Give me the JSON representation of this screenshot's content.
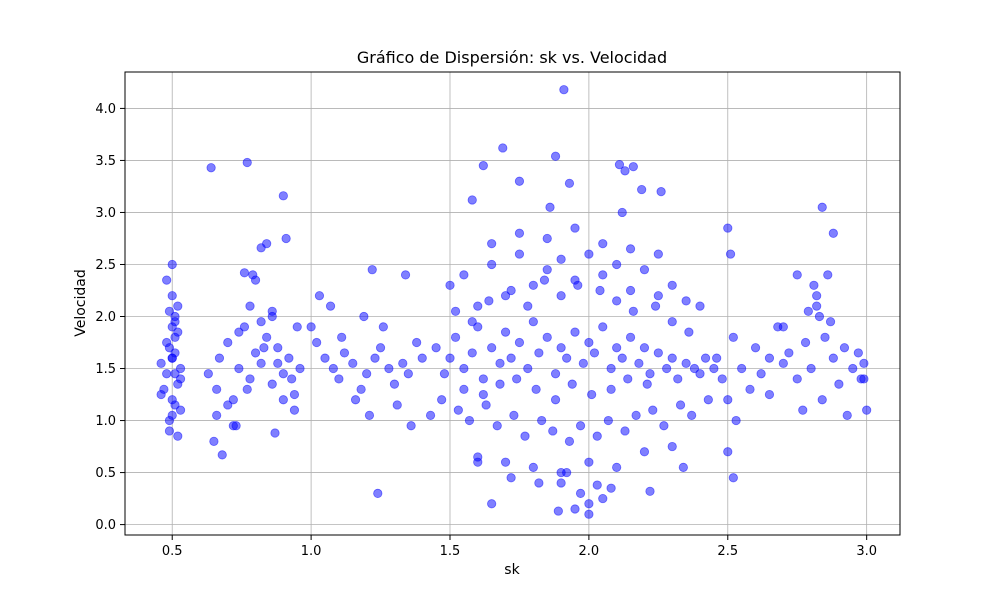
{
  "chart_data": {
    "type": "scatter",
    "title": "Gráfico de Dispersión: sk vs. Velocidad",
    "xlabel": "sk",
    "ylabel": "Velocidad",
    "xlim": [
      0.33,
      3.12
    ],
    "ylim": [
      -0.1,
      4.35
    ],
    "x_ticks": [
      0.5,
      1.0,
      1.5,
      2.0,
      2.5,
      3.0
    ],
    "x_tick_labels": [
      "0.5",
      "1.0",
      "1.5",
      "2.0",
      "2.5",
      "3.0"
    ],
    "y_ticks": [
      0.0,
      0.5,
      1.0,
      1.5,
      2.0,
      2.5,
      3.0,
      3.5,
      4.0
    ],
    "y_tick_labels": [
      "0.0",
      "0.5",
      "1.0",
      "1.5",
      "2.0",
      "2.5",
      "3.0",
      "3.5",
      "4.0"
    ],
    "grid": true,
    "legend": "none",
    "marker_color": "#0000ff",
    "marker_alpha": 0.5,
    "series": [
      {
        "x": [
          0.46,
          0.47,
          0.48,
          0.49,
          0.5,
          0.5,
          0.51,
          0.51,
          0.52,
          0.53,
          0.46,
          0.49,
          0.5,
          0.51,
          0.52,
          0.48,
          0.5,
          0.51,
          0.53,
          0.49,
          0.52,
          0.5,
          0.52,
          0.51,
          0.49,
          0.5,
          0.51,
          0.53,
          0.5,
          0.48,
          0.63,
          0.66,
          0.67,
          0.7,
          0.72,
          0.74,
          0.76,
          0.78,
          0.8,
          0.82,
          0.84,
          0.86,
          0.88,
          0.9,
          0.92,
          0.94,
          0.96,
          0.66,
          0.7,
          0.74,
          0.78,
          0.82,
          0.86,
          0.9,
          0.94,
          0.72,
          0.77,
          0.83,
          0.88,
          0.93,
          0.64,
          0.77,
          0.9,
          0.76,
          0.79,
          0.82,
          0.84,
          0.86,
          0.91,
          0.65,
          0.68,
          0.73,
          0.8,
          0.87,
          0.95,
          1.0,
          1.02,
          1.05,
          1.08,
          1.1,
          1.12,
          1.15,
          1.18,
          1.2,
          1.23,
          1.25,
          1.28,
          1.3,
          1.33,
          1.35,
          1.38,
          1.4,
          1.03,
          1.07,
          1.11,
          1.16,
          1.21,
          1.26,
          1.31,
          1.36,
          1.22,
          1.24,
          1.34,
          1.43,
          1.19,
          1.45,
          1.48,
          1.5,
          1.52,
          1.55,
          1.58,
          1.6,
          1.62,
          1.65,
          1.68,
          1.7,
          1.72,
          1.75,
          1.78,
          1.8,
          1.82,
          1.85,
          1.88,
          1.9,
          1.92,
          1.95,
          1.98,
          2.0,
          2.02,
          2.05,
          2.08,
          2.1,
          2.12,
          2.15,
          2.18,
          2.2,
          2.22,
          2.25,
          2.28,
          2.3,
          2.32,
          2.35,
          2.38,
          2.4,
          2.42,
          2.45,
          1.5,
          1.55,
          1.6,
          1.65,
          1.7,
          1.75,
          1.8,
          1.85,
          1.9,
          1.95,
          2.0,
          2.05,
          2.1,
          2.15,
          2.2,
          2.25,
          2.3,
          2.35,
          2.4,
          1.47,
          1.53,
          1.57,
          1.63,
          1.67,
          1.73,
          1.77,
          1.83,
          1.87,
          1.93,
          1.97,
          2.03,
          2.07,
          2.13,
          2.17,
          2.23,
          2.27,
          2.33,
          2.37,
          2.43,
          1.52,
          1.58,
          1.64,
          1.72,
          1.78,
          1.84,
          1.9,
          1.96,
          2.04,
          2.1,
          2.16,
          2.24,
          2.3,
          2.36,
          1.6,
          1.7,
          1.8,
          1.9,
          2.0,
          2.1,
          2.2,
          2.3,
          1.65,
          1.75,
          1.85,
          1.95,
          2.05,
          2.15,
          2.25,
          1.55,
          1.62,
          1.68,
          1.74,
          1.81,
          1.88,
          1.94,
          2.01,
          2.08,
          2.14,
          2.21,
          1.69,
          1.91,
          1.88,
          2.11,
          2.13,
          2.16,
          1.75,
          1.58,
          1.62,
          1.86,
          1.93,
          2.19,
          2.26,
          1.97,
          2.0,
          2.0,
          1.95,
          2.08,
          1.89,
          1.65,
          1.72,
          1.6,
          1.82,
          2.05,
          2.22,
          1.92,
          1.9,
          2.03,
          2.34,
          2.12,
          2.46,
          2.48,
          2.5,
          2.52,
          2.55,
          2.58,
          2.6,
          2.62,
          2.65,
          2.68,
          2.7,
          2.72,
          2.75,
          2.78,
          2.8,
          2.82,
          2.85,
          2.88,
          2.9,
          2.92,
          2.95,
          2.98,
          3.0,
          2.99,
          2.93,
          2.86,
          2.84,
          2.83,
          2.81,
          2.87,
          2.5,
          2.51,
          2.52,
          2.5,
          2.53,
          2.75,
          2.79,
          2.88,
          2.84,
          2.82,
          2.97,
          2.99,
          2.77,
          2.7,
          2.65
        ],
        "y": [
          1.55,
          1.3,
          1.75,
          2.05,
          1.6,
          1.2,
          1.45,
          1.95,
          2.1,
          1.4,
          1.25,
          1.7,
          2.2,
          1.15,
          1.85,
          2.35,
          1.05,
          1.65,
          1.5,
          0.9,
          0.85,
          2.5,
          1.35,
          1.8,
          1.0,
          1.9,
          2.0,
          1.1,
          1.6,
          1.45,
          1.45,
          1.3,
          1.6,
          1.75,
          1.2,
          1.5,
          1.9,
          1.4,
          1.65,
          1.55,
          1.8,
          1.35,
          1.7,
          1.45,
          1.6,
          1.25,
          1.5,
          1.05,
          1.15,
          1.85,
          2.1,
          1.95,
          2.0,
          1.2,
          1.1,
          0.95,
          1.3,
          1.7,
          1.55,
          1.4,
          3.43,
          3.48,
          3.16,
          2.42,
          2.4,
          2.66,
          2.7,
          2.05,
          2.75,
          0.8,
          0.67,
          0.95,
          2.35,
          0.88,
          1.9,
          1.9,
          1.75,
          1.6,
          1.5,
          1.4,
          1.65,
          1.55,
          1.3,
          1.45,
          1.6,
          1.7,
          1.5,
          1.35,
          1.55,
          1.45,
          1.75,
          1.6,
          2.2,
          2.1,
          1.8,
          1.2,
          1.05,
          1.9,
          1.15,
          0.95,
          2.45,
          0.3,
          2.4,
          1.05,
          2.0,
          1.7,
          1.45,
          1.6,
          1.8,
          1.5,
          1.65,
          1.9,
          1.4,
          1.7,
          1.55,
          1.85,
          1.6,
          1.75,
          1.5,
          1.95,
          1.65,
          1.8,
          1.45,
          1.7,
          1.6,
          1.85,
          1.55,
          1.75,
          1.65,
          1.9,
          1.5,
          1.7,
          1.6,
          1.8,
          1.55,
          1.7,
          1.45,
          1.65,
          1.5,
          1.6,
          1.4,
          1.55,
          1.5,
          1.45,
          1.6,
          1.5,
          2.3,
          2.4,
          2.1,
          2.5,
          2.2,
          2.6,
          2.3,
          2.45,
          2.55,
          2.35,
          2.6,
          2.4,
          2.5,
          2.25,
          2.45,
          2.2,
          2.3,
          2.15,
          2.1,
          1.2,
          1.1,
          1.0,
          1.15,
          0.95,
          1.05,
          0.85,
          1.0,
          0.9,
          0.8,
          0.95,
          0.85,
          1.0,
          0.9,
          1.05,
          1.1,
          0.95,
          1.15,
          1.05,
          1.2,
          2.05,
          1.95,
          2.15,
          2.25,
          2.1,
          2.35,
          2.2,
          2.3,
          2.25,
          2.15,
          2.05,
          2.1,
          1.95,
          1.85,
          0.65,
          0.6,
          0.55,
          0.5,
          0.6,
          0.55,
          0.7,
          0.75,
          2.7,
          2.8,
          2.75,
          2.85,
          2.7,
          2.65,
          2.6,
          1.3,
          1.25,
          1.35,
          1.4,
          1.3,
          1.2,
          1.35,
          1.25,
          1.3,
          1.4,
          1.35,
          3.62,
          4.18,
          3.54,
          3.46,
          3.4,
          3.44,
          3.3,
          3.12,
          3.45,
          3.05,
          3.28,
          3.22,
          3.2,
          0.3,
          0.1,
          0.2,
          0.15,
          0.35,
          0.13,
          0.2,
          0.45,
          0.6,
          0.4,
          0.25,
          0.32,
          0.5,
          0.4,
          0.38,
          0.55,
          3.0,
          1.6,
          1.4,
          1.2,
          1.8,
          1.5,
          1.3,
          1.7,
          1.45,
          1.6,
          1.9,
          1.55,
          1.65,
          1.4,
          1.75,
          1.5,
          2.2,
          1.8,
          1.6,
          1.35,
          1.7,
          1.5,
          1.4,
          1.1,
          1.55,
          1.05,
          2.4,
          1.2,
          2.0,
          2.3,
          1.95,
          2.85,
          2.6,
          0.45,
          0.7,
          1.0,
          2.4,
          2.05,
          2.8,
          3.05,
          2.1,
          1.65,
          1.4,
          1.1,
          1.9,
          1.25
        ]
      }
    ]
  }
}
